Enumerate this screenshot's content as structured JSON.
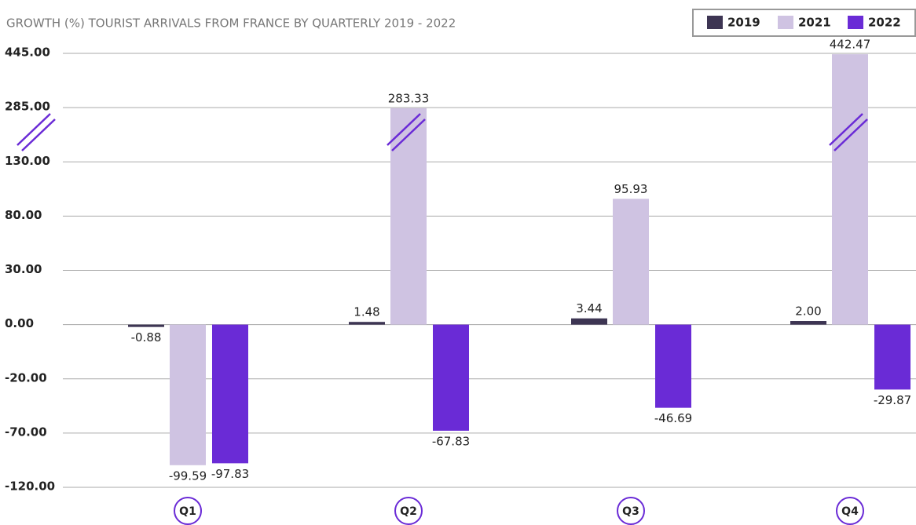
{
  "chart_data": {
    "type": "bar",
    "title": "GROWTH (%) TOURIST ARRIVALS FROM FRANCE BY QUARTERLY  2019 - 2022",
    "categories": [
      "Q1",
      "Q2",
      "Q3",
      "Q4"
    ],
    "series": [
      {
        "name": "2019",
        "color": "#3d3553",
        "values": [
          -0.88,
          1.48,
          3.44,
          2.0
        ],
        "value_labels": [
          "-0.88",
          "1.48",
          "3.44",
          "2.00"
        ]
      },
      {
        "name": "2021",
        "color": "#cfc3e2",
        "values": [
          -99.59,
          283.33,
          95.93,
          442.47
        ],
        "value_labels": [
          "-99.59",
          "283.33",
          "95.93",
          "442.47"
        ]
      },
      {
        "name": "2022",
        "color": "#6a2bd6",
        "values": [
          -97.83,
          -67.83,
          -46.69,
          -29.87
        ],
        "value_labels": [
          "-97.83",
          "-67.83",
          "-46.69",
          "-29.87"
        ]
      }
    ],
    "ylim": [
      -120,
      445
    ],
    "yticks": [
      {
        "value": 445,
        "label": "445.00"
      },
      {
        "value": 285,
        "label": "285.00"
      },
      {
        "value": 130,
        "label": "130.00"
      },
      {
        "value": 80,
        "label": "80.00"
      },
      {
        "value": 30,
        "label": "30.00"
      },
      {
        "value": 0,
        "label": "0.00"
      },
      {
        "value": -20,
        "label": "-20.00"
      },
      {
        "value": -70,
        "label": "-70.00"
      },
      {
        "value": -120,
        "label": "-120.00"
      }
    ],
    "grid": true,
    "legend": "top-right"
  }
}
